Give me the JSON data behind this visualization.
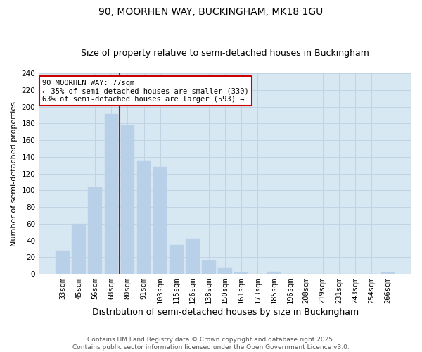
{
  "title": "90, MOORHEN WAY, BUCKINGHAM, MK18 1GU",
  "subtitle": "Size of property relative to semi-detached houses in Buckingham",
  "xlabel": "Distribution of semi-detached houses by size in Buckingham",
  "ylabel": "Number of semi-detached properties",
  "categories": [
    "33sqm",
    "45sqm",
    "56sqm",
    "68sqm",
    "80sqm",
    "91sqm",
    "103sqm",
    "115sqm",
    "126sqm",
    "138sqm",
    "150sqm",
    "161sqm",
    "173sqm",
    "185sqm",
    "196sqm",
    "208sqm",
    "219sqm",
    "231sqm",
    "243sqm",
    "254sqm",
    "266sqm"
  ],
  "values": [
    28,
    60,
    104,
    191,
    178,
    136,
    128,
    35,
    42,
    16,
    8,
    2,
    0,
    3,
    0,
    0,
    0,
    0,
    0,
    0,
    2
  ],
  "bar_color": "#b8d0e8",
  "bar_edge_color": "#b8d0e8",
  "vline_color": "#cc0000",
  "annotation_text": "90 MOORHEN WAY: 77sqm\n← 35% of semi-detached houses are smaller (330)\n63% of semi-detached houses are larger (593) →",
  "annotation_box_color": "#ffffff",
  "annotation_box_edge_color": "#cc0000",
  "ylim": [
    0,
    240
  ],
  "yticks": [
    0,
    20,
    40,
    60,
    80,
    100,
    120,
    140,
    160,
    180,
    200,
    220,
    240
  ],
  "grid_color": "#c0d4e4",
  "background_color": "#d8e8f2",
  "footer": "Contains HM Land Registry data © Crown copyright and database right 2025.\nContains public sector information licensed under the Open Government Licence v3.0.",
  "title_fontsize": 10,
  "subtitle_fontsize": 9,
  "xlabel_fontsize": 9,
  "ylabel_fontsize": 8,
  "tick_fontsize": 7.5,
  "footer_fontsize": 6.5,
  "annotation_fontsize": 7.5
}
